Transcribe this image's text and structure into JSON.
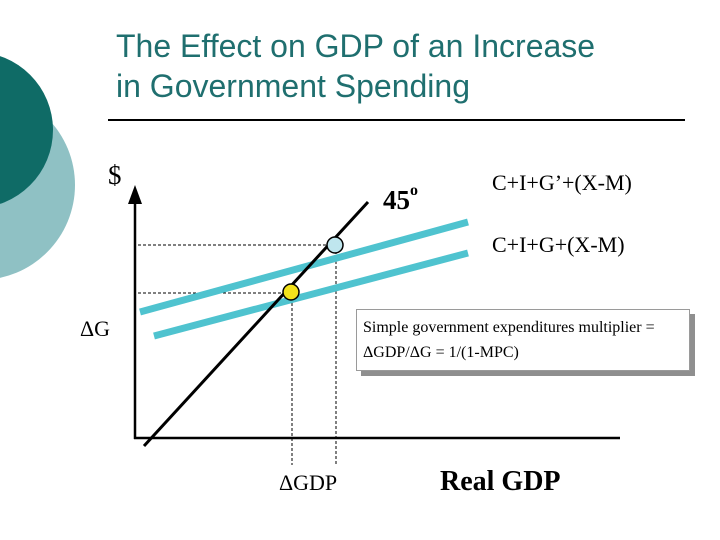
{
  "slide": {
    "title_line1": "The Effect on GDP of an Increase",
    "title_line2": "in Government Spending"
  },
  "diagram": {
    "y_axis_label": "$",
    "x_axis_label": "Real GDP",
    "degree_label": "45",
    "degree_symbol": "o",
    "curve_new_label": "C+I+G’+(X-M)",
    "curve_old_label": "C+I+G+(X-M)",
    "delta_g_label": "ΔG",
    "delta_gdp_label": "ΔGDP"
  },
  "callout": {
    "line1": "Simple government expenditures multiplier =",
    "line2": "ΔGDP/ΔG = 1/(1-MPC)"
  },
  "colors": {
    "title": "#1f6f6f",
    "decor_dark": "#0f6b66",
    "decor_light": "#8fc1c4",
    "expenditure_line": "#4fc3cf",
    "old_equilibrium_point": "#f2e21b",
    "new_equilibrium_point": "#bfe6ee"
  }
}
